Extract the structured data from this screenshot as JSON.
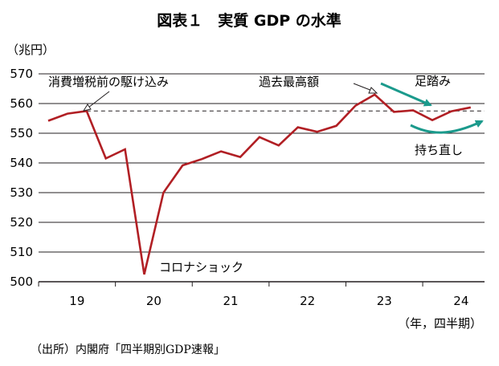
{
  "chart_data": {
    "type": "line",
    "title": "図表１　実質 GDP の水準",
    "ylabel": "（兆円）",
    "xlabel": "（年，四半期）",
    "ylim": [
      500,
      570
    ],
    "y_ticks": [
      "500",
      "510",
      "520",
      "530",
      "540",
      "550",
      "560",
      "570"
    ],
    "x_ticks": [
      "19",
      "20",
      "21",
      "22",
      "23",
      "24"
    ],
    "grid": true,
    "x": [
      "2019Q1",
      "2019Q2",
      "2019Q3",
      "2019Q4",
      "2020Q1",
      "2020Q2",
      "2020Q3",
      "2020Q4",
      "2021Q1",
      "2021Q2",
      "2021Q3",
      "2021Q4",
      "2022Q1",
      "2022Q2",
      "2022Q3",
      "2022Q4",
      "2023Q1",
      "2023Q2",
      "2023Q3",
      "2023Q4",
      "2024Q1",
      "2024Q2",
      "2024Q3"
    ],
    "values": [
      554.2,
      556.6,
      557.5,
      541.5,
      544.6,
      502.5,
      530.0,
      539.2,
      541.3,
      543.9,
      542.0,
      548.7,
      545.9,
      552.0,
      550.5,
      552.5,
      559.3,
      563.0,
      557.2,
      557.7,
      554.4,
      557.4,
      558.7
    ],
    "reference_line": {
      "value": 557.5,
      "style": "dashed"
    },
    "annotations": {
      "pre_covid": "消費増税前の駆け込み",
      "peak": "過去最高額",
      "stagnation": "足踏み",
      "covid": "コロナショック",
      "recovery": "持ち直し"
    },
    "source": "（出所）内閣府「四半期別GDP速報」",
    "colors": {
      "line": "#b11f24",
      "arrow": "#1b9a8c",
      "grid": "#231f20"
    }
  }
}
